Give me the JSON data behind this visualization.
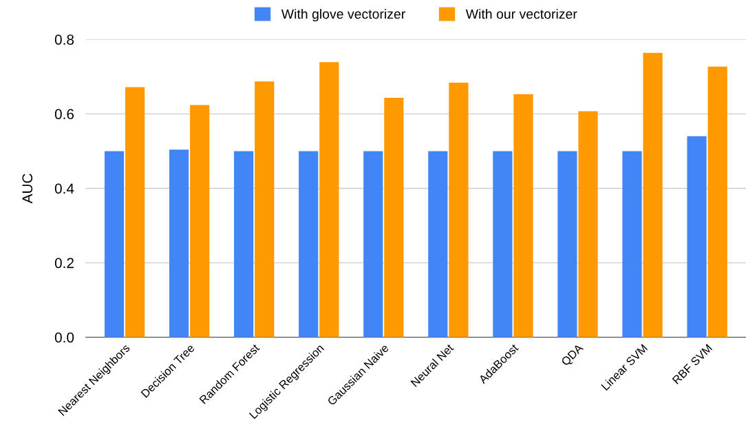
{
  "chart_data": {
    "type": "bar",
    "ylabel": "AUC",
    "categories": [
      "Nearest Neighbors",
      "Decision Tree",
      "Random Forest",
      "Logistic Regression",
      "Gaussian Naive",
      "Neural Net",
      "AdaBoost",
      "QDA",
      "Linear SVM",
      "RBF SVM"
    ],
    "series": [
      {
        "name": "With glove vectorizer",
        "color": "#4285f4",
        "values": [
          0.5,
          0.504,
          0.5,
          0.5,
          0.5,
          0.5,
          0.5,
          0.5,
          0.5,
          0.54
        ]
      },
      {
        "name": "With our vectorizer",
        "color": "#ff9900",
        "values": [
          0.672,
          0.624,
          0.687,
          0.739,
          0.643,
          0.684,
          0.653,
          0.607,
          0.764,
          0.727
        ]
      }
    ],
    "ylim": [
      0,
      0.8
    ],
    "yticks": [
      {
        "value": 0,
        "label": "0.0"
      },
      {
        "value": 0.2,
        "label": "0.2"
      },
      {
        "value": 0.4,
        "label": "0.4"
      },
      {
        "value": 0.6,
        "label": "0.6"
      },
      {
        "value": 0.8,
        "label": "0.8"
      }
    ],
    "grid": "y",
    "legend": "top"
  }
}
